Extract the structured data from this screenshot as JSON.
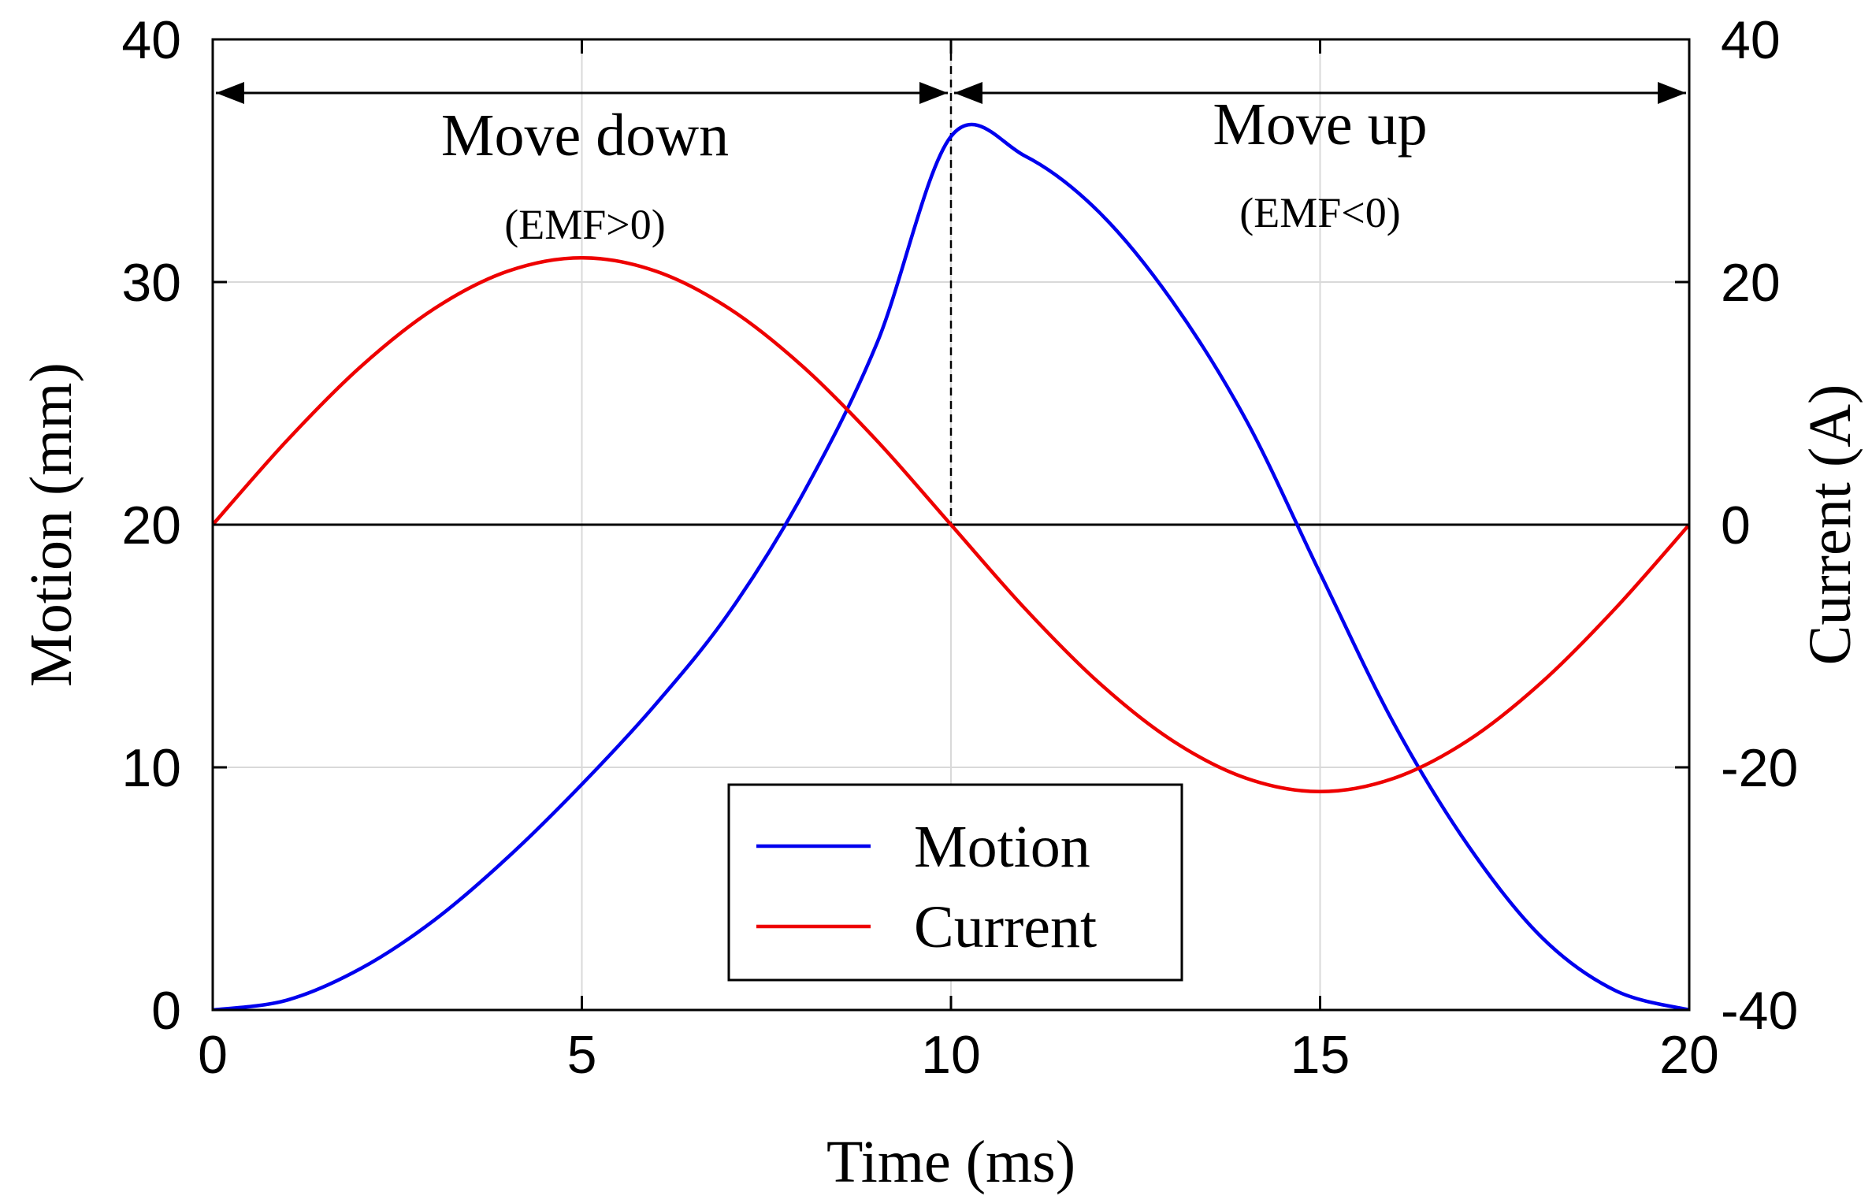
{
  "chart_data": {
    "type": "line",
    "xlabel": "Time (ms)",
    "ylabel_left": "Motion (mm)",
    "ylabel_right": "Current (A)",
    "xlim": [
      0,
      20
    ],
    "ylim_left": [
      0,
      40
    ],
    "ylim_right": [
      -40,
      40
    ],
    "x_ticks": [
      0,
      5,
      10,
      15,
      20
    ],
    "y_left_ticks": [
      0,
      10,
      20,
      30,
      40
    ],
    "y_right_ticks": [
      -40,
      -20,
      0,
      20,
      40
    ],
    "grid": true,
    "legend_position": "bottom-center",
    "series": [
      {
        "name": "Motion",
        "axis": "left",
        "color": "#0000ee",
        "x": [
          0,
          1,
          2,
          3,
          4,
          5,
          6,
          7,
          8,
          9,
          10,
          11,
          12,
          13,
          14,
          15,
          16,
          17,
          18,
          19,
          20
        ],
        "y": [
          0.0,
          0.4,
          1.7,
          3.7,
          6.3,
          9.3,
          12.6,
          16.4,
          21.3,
          27.5,
          36.0,
          35.2,
          32.9,
          29.2,
          24.3,
          18.0,
          11.8,
          6.8,
          3.0,
          0.8,
          0.0
        ]
      },
      {
        "name": "Current",
        "axis": "right",
        "color": "#ee0000",
        "x": [
          0,
          1,
          2,
          3,
          4,
          5,
          6,
          7,
          8,
          9,
          10,
          11,
          12,
          13,
          14,
          15,
          16,
          17,
          18,
          19,
          20
        ],
        "y": [
          0.0,
          6.9,
          13.0,
          17.8,
          20.9,
          22.0,
          20.9,
          17.8,
          13.0,
          6.9,
          0.0,
          -6.9,
          -13.0,
          -17.8,
          -20.9,
          -22.0,
          -20.9,
          -17.8,
          -13.0,
          -6.9,
          0.0
        ]
      }
    ],
    "zero_line_current": 0,
    "divider_x": 10,
    "annotations": [
      {
        "text": "Move down",
        "sub": "(EMF>0)",
        "x_from": 0,
        "x_to": 10
      },
      {
        "text": "Move up",
        "sub": "(EMF<0)",
        "x_from": 10,
        "x_to": 20
      }
    ]
  }
}
